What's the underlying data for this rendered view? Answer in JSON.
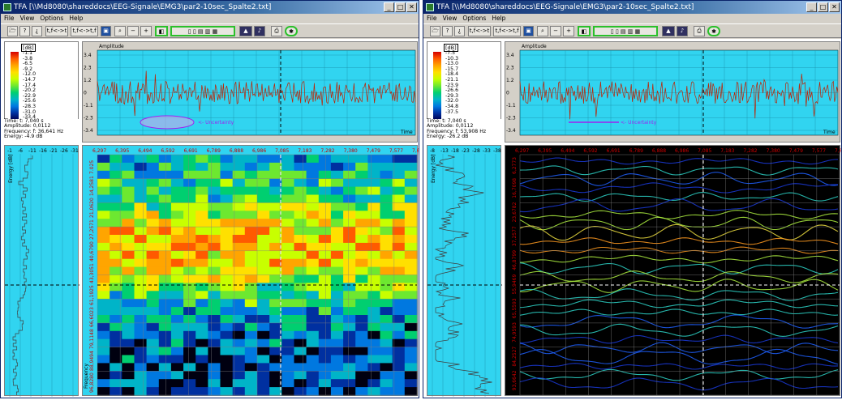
{
  "windows": [
    {
      "title": "TFA [\\\\Md8080\\shareddocs\\EEG-Signale\\EMG3\\par2-10sec_Spalte2.txt]",
      "menu": [
        "File",
        "View",
        "Options",
        "Help"
      ],
      "legend": {
        "unit": "[dB]",
        "values": [
          "-1.1",
          "-3.8",
          "-6.5",
          "-9.2",
          "-12.0",
          "-14.7",
          "-17.4",
          "-20.2",
          "-22.9",
          "-25.6",
          "-28.3",
          "-31.0",
          "-33.4",
          "-36.4"
        ]
      },
      "info": [
        "Time: t: 7,040 s",
        "Amplitude:  0,0112",
        "Frequency: f: 36,641 Hz",
        "Energy: -4.9 dB"
      ],
      "amplitude": {
        "title": "Amplitude",
        "yticks": [
          "3.4",
          "2.3",
          "1.2",
          "0",
          "-1.1",
          "-2.3",
          "-3.4"
        ],
        "time_label": "Time",
        "uncertainty": "<- Uncertainty"
      },
      "marginal": {
        "axis_label": "Energy [dB]",
        "xticks": [
          "-1",
          "-6",
          "-11",
          "-16",
          "-21",
          "-26",
          "-31"
        ]
      },
      "spectrogram": {
        "time_ticks": [
          "6,297",
          "6,395",
          "6,494",
          "6,592",
          "6,691",
          "6,789",
          "6,888",
          "6,986",
          "7,085",
          "7,183",
          "7,282",
          "7,380",
          "7,479",
          "7,577",
          "7,6"
        ],
        "freq_ticks": [
          "7.025",
          "14,2581",
          "21,0620",
          "27,2571",
          "40,6790",
          "43,3051",
          "61,1925",
          "66,6023",
          "79,1148",
          "88,9494",
          "96,8280"
        ],
        "freq_label": "Frequency"
      }
    },
    {
      "title": "TFA [\\\\Md8080\\shareddocs\\EEG-Signale\\EMG3\\par2-10sec_Spalte2.txt]",
      "menu": [
        "File",
        "View",
        "Options",
        "Help"
      ],
      "legend": {
        "unit": "[dB]",
        "values": [
          "-7.5",
          "-10.3",
          "-13.0",
          "-15.7",
          "-18.4",
          "-21.1",
          "-23.9",
          "-26.6",
          "-29.3",
          "-32.0",
          "-34.8",
          "-37.5"
        ]
      },
      "info": [
        "Time: t: 7,040 s",
        "Amplitude:  0,0112",
        "Frequency: f: 53,908 Hz",
        "Energy: -26.2 dB"
      ],
      "amplitude": {
        "title": "Amplitude",
        "yticks": [
          "3.4",
          "2.3",
          "1.2",
          "0",
          "-1.1",
          "-2.3",
          "-3.4"
        ],
        "time_label": "Time",
        "uncertainty": "<- Uncertainty"
      },
      "marginal": {
        "axis_label": "Energy [dB]",
        "xticks": [
          "-8",
          "-13",
          "-18",
          "-23",
          "-28",
          "-33",
          "-38"
        ]
      },
      "spectrogram": {
        "time_ticks": [
          "6,297",
          "6,395",
          "6,494",
          "6,592",
          "6,691",
          "6,789",
          "6,888",
          "6,986",
          "7,085",
          "7,183",
          "7,282",
          "7,380",
          "7,479",
          "7,577",
          "7,6"
        ],
        "freq_ticks": [
          "6,2773",
          "16,7098",
          "23,6782",
          "37,2577",
          "46,8799",
          "55,9469",
          "65,5593",
          "74,9593",
          "84,2527",
          "93,6642"
        ],
        "freq_label": "Frequency"
      }
    }
  ],
  "toolbar": {
    "tf_label": "t,f<->t",
    "tf_label2": "t,f<->t,f"
  },
  "colors": {
    "spectrum_background": "#31d4f0",
    "signal": "#c02000",
    "uncertainty": "#a020f0",
    "titlebar": "#0a246a"
  }
}
